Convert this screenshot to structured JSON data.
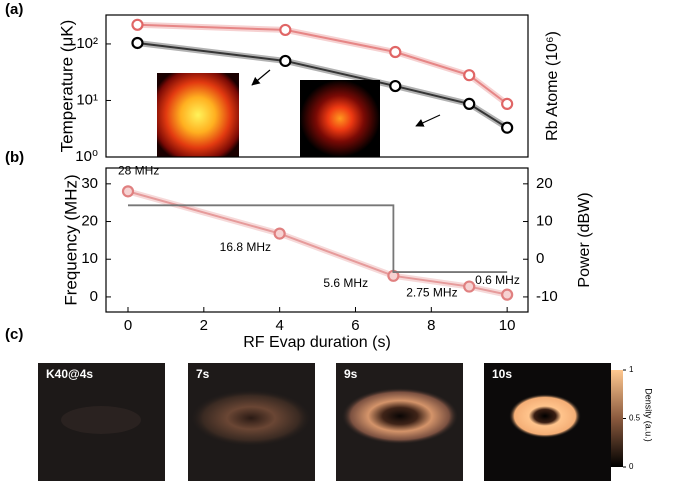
{
  "chart_data": [
    {
      "type": "line",
      "panel_label": "(a)",
      "ylabel": "Temperature (μK)",
      "y2label": "Rb Atome (10⁶)",
      "log_y": true,
      "xlim": [
        -0.58,
        10.55
      ],
      "ylim": [
        1,
        325
      ],
      "yticks": [
        {
          "value": 1,
          "label": "10⁰"
        },
        {
          "value": 10,
          "label": "10¹"
        },
        {
          "value": 100,
          "label": "10²"
        }
      ],
      "y2lim": [
        1,
        325
      ],
      "series": [
        {
          "color": "#e06666",
          "marker": "circle",
          "x": [
            0.25,
            4.15,
            7.05,
            9,
            10
          ],
          "values": [
            218,
            177,
            72,
            28,
            8.7
          ]
        },
        {
          "color": "#000000",
          "axis": "y2",
          "marker": "circle",
          "x": [
            0.25,
            4.15,
            7.05,
            9,
            10
          ],
          "values": [
            104,
            50,
            18,
            8.7,
            3.3
          ]
        }
      ]
    },
    {
      "type": "line",
      "panel_label": "(b)",
      "xlabel": "RF Evap duration (s)",
      "ylabel": "Frequency (MHz)",
      "y2label": "Power (dBW)",
      "xlim": [
        -0.58,
        10.55
      ],
      "xticks": [
        0,
        2,
        4,
        6,
        8,
        10
      ],
      "ylim": [
        -4,
        34.2
      ],
      "yticks": [
        0,
        10,
        20,
        30
      ],
      "y2lim": [
        -14,
        24.2
      ],
      "y2ticks": [
        -10,
        0,
        10,
        20
      ],
      "series": [
        {
          "color": "#e08080",
          "marker": "circle",
          "x": [
            0,
            4,
            7,
            9,
            10
          ],
          "values": [
            28,
            16.8,
            5.6,
            2.75,
            0.6
          ],
          "value_labels": [
            "28 MHz",
            "16.8 MHz",
            "5.6 MHz",
            "2.75 MHz",
            "0.6 MHz"
          ]
        },
        {
          "color": "#777777",
          "axis": "y2",
          "marker": "none",
          "x": [
            0,
            7,
            7,
            10
          ],
          "values": [
            14.3,
            14.3,
            -3.4,
            -3.4
          ]
        }
      ]
    },
    {
      "type": "image",
      "panel_label": "(c)",
      "panels": [
        "K40@4s",
        "7s",
        "9s",
        "10s"
      ],
      "colorbar": {
        "label": "Density (a.u.)",
        "ticks": [
          0,
          0.5,
          1
        ]
      }
    }
  ]
}
